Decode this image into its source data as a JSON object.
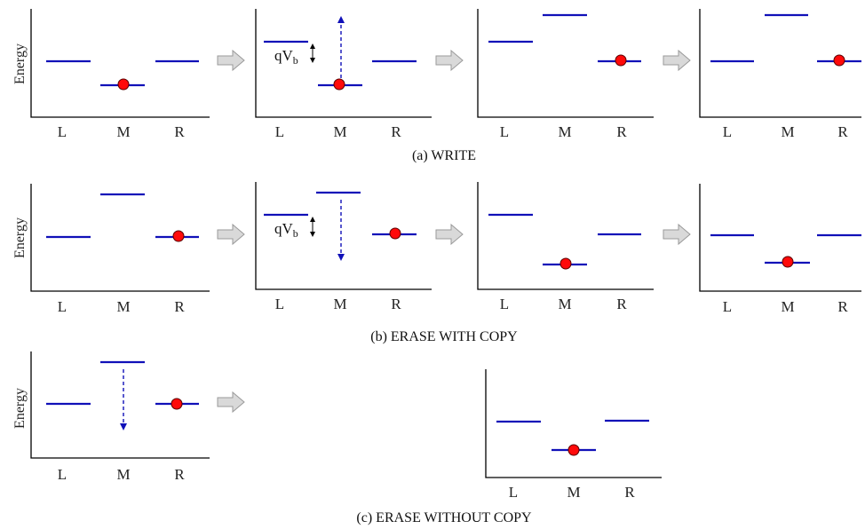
{
  "y_axis_label": "Energy",
  "x_labels": [
    "L",
    "M",
    "R"
  ],
  "bias_label": {
    "main": "qV",
    "sub": "b"
  },
  "captions": {
    "write": "(a) WRITE",
    "erase_copy": "(b) ERASE WITH COPY",
    "erase_no_copy": "(c) ERASE WITHOUT COPY"
  },
  "colors": {
    "level": "#1010b8",
    "electron": "#ff0a0a",
    "arrow_fill": "#d9d9d9"
  },
  "icons": {
    "step": "gray-right-arrow-icon",
    "electron": "red-dot-icon"
  }
}
